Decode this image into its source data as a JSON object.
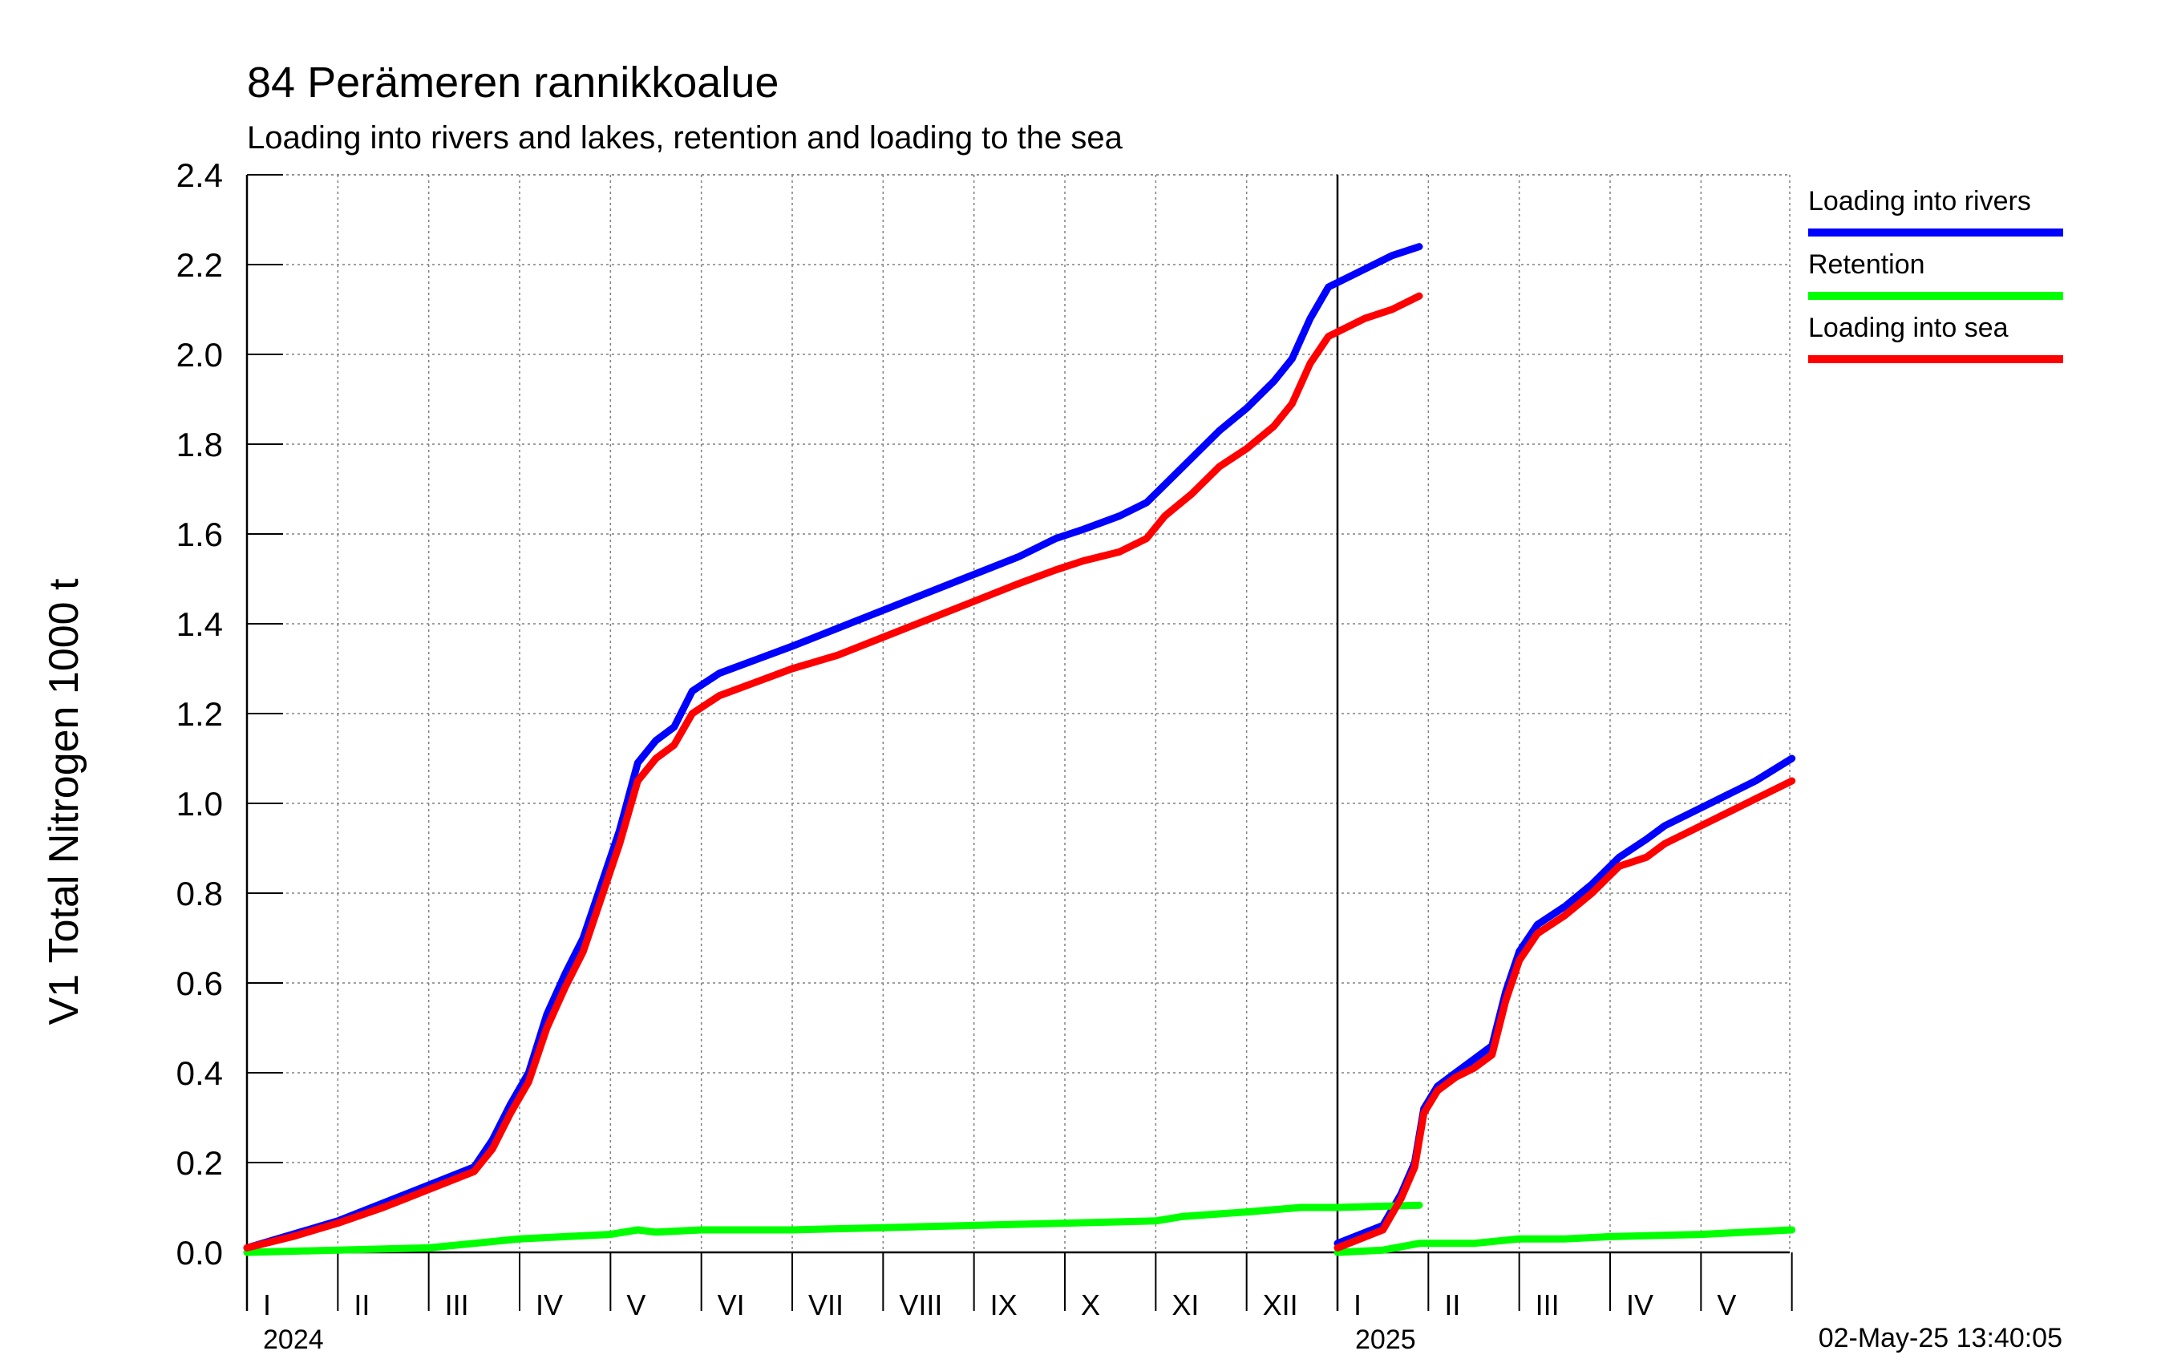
{
  "title": "84 Perämeren rannikkoalue",
  "subtitle": "Loading into rivers and lakes, retention and loading to the sea",
  "timestamp": "02-May-25 13:40:05",
  "chart_data": {
    "type": "line",
    "ylabel": "V1 Total Nitrogen 1000 t",
    "ylim": [
      0.0,
      2.4
    ],
    "yticks": [
      "0.0",
      "0.2",
      "0.4",
      "0.6",
      "0.8",
      "1.0",
      "1.2",
      "1.4",
      "1.6",
      "1.8",
      "2.0",
      "2.2",
      "2.4"
    ],
    "grid": true,
    "legend_position": "right",
    "years": [
      "2024",
      "2025"
    ],
    "month_labels": [
      "I",
      "II",
      "III",
      "IV",
      "V",
      "VI",
      "VII",
      "VIII",
      "IX",
      "X",
      "XI",
      "XII",
      "I",
      "II",
      "III",
      "IV",
      "V"
    ],
    "x_unit": "months since 1 Jan 2024",
    "series": [
      {
        "name": "Loading into rivers",
        "color": "#0000ff",
        "segments": [
          [
            [
              0,
              0.01
            ],
            [
              0.5,
              0.04
            ],
            [
              1.0,
              0.07
            ],
            [
              1.5,
              0.11
            ],
            [
              2.0,
              0.15
            ],
            [
              2.5,
              0.19
            ],
            [
              2.7,
              0.25
            ],
            [
              2.9,
              0.33
            ],
            [
              3.1,
              0.4
            ],
            [
              3.3,
              0.53
            ],
            [
              3.5,
              0.62
            ],
            [
              3.7,
              0.7
            ],
            [
              3.9,
              0.82
            ],
            [
              4.1,
              0.94
            ],
            [
              4.3,
              1.09
            ],
            [
              4.5,
              1.14
            ],
            [
              4.7,
              1.17
            ],
            [
              4.9,
              1.25
            ],
            [
              5.2,
              1.29
            ],
            [
              5.6,
              1.32
            ],
            [
              6.0,
              1.35
            ],
            [
              6.5,
              1.39
            ],
            [
              7.0,
              1.43
            ],
            [
              7.5,
              1.47
            ],
            [
              8.0,
              1.51
            ],
            [
              8.5,
              1.55
            ],
            [
              8.9,
              1.59
            ],
            [
              9.2,
              1.61
            ],
            [
              9.6,
              1.64
            ],
            [
              9.9,
              1.67
            ],
            [
              10.1,
              1.71
            ],
            [
              10.4,
              1.77
            ],
            [
              10.7,
              1.83
            ],
            [
              11.0,
              1.88
            ],
            [
              11.3,
              1.94
            ],
            [
              11.5,
              1.99
            ],
            [
              11.7,
              2.08
            ],
            [
              11.9,
              2.15
            ],
            [
              12.3,
              2.19
            ],
            [
              12.6,
              2.22
            ],
            [
              12.9,
              2.24
            ]
          ],
          [
            [
              12.0,
              0.02
            ],
            [
              12.5,
              0.06
            ],
            [
              12.7,
              0.13
            ],
            [
              12.85,
              0.2
            ],
            [
              12.95,
              0.32
            ],
            [
              13.1,
              0.37
            ],
            [
              13.3,
              0.4
            ],
            [
              13.5,
              0.43
            ],
            [
              13.7,
              0.46
            ],
            [
              13.85,
              0.58
            ],
            [
              14.0,
              0.67
            ],
            [
              14.2,
              0.73
            ],
            [
              14.5,
              0.77
            ],
            [
              14.8,
              0.82
            ],
            [
              15.1,
              0.88
            ],
            [
              15.4,
              0.92
            ],
            [
              15.6,
              0.95
            ],
            [
              16.0,
              0.99
            ],
            [
              16.3,
              1.02
            ],
            [
              16.6,
              1.05
            ],
            [
              17.0,
              1.1
            ]
          ]
        ]
      },
      {
        "name": "Retention",
        "color": "#00ff00",
        "segments": [
          [
            [
              0,
              0.0
            ],
            [
              1.0,
              0.005
            ],
            [
              2.0,
              0.01
            ],
            [
              2.5,
              0.02
            ],
            [
              3.0,
              0.03
            ],
            [
              3.5,
              0.035
            ],
            [
              4.0,
              0.04
            ],
            [
              4.3,
              0.05
            ],
            [
              4.5,
              0.045
            ],
            [
              5.0,
              0.05
            ],
            [
              6.0,
              0.05
            ],
            [
              7.0,
              0.055
            ],
            [
              8.0,
              0.06
            ],
            [
              9.0,
              0.065
            ],
            [
              10.0,
              0.07
            ],
            [
              10.3,
              0.08
            ],
            [
              11.0,
              0.09
            ],
            [
              11.6,
              0.1
            ],
            [
              12.0,
              0.1
            ],
            [
              12.9,
              0.105
            ]
          ],
          [
            [
              12.0,
              0.0
            ],
            [
              12.5,
              0.005
            ],
            [
              12.9,
              0.02
            ],
            [
              13.5,
              0.02
            ],
            [
              14.0,
              0.03
            ],
            [
              14.5,
              0.03
            ],
            [
              15.0,
              0.035
            ],
            [
              16.0,
              0.04
            ],
            [
              17.0,
              0.05
            ]
          ]
        ]
      },
      {
        "name": "Loading into sea",
        "color": "#ff0000",
        "segments": [
          [
            [
              0,
              0.01
            ],
            [
              0.5,
              0.035
            ],
            [
              1.0,
              0.065
            ],
            [
              1.5,
              0.1
            ],
            [
              2.0,
              0.14
            ],
            [
              2.5,
              0.18
            ],
            [
              2.7,
              0.23
            ],
            [
              2.9,
              0.31
            ],
            [
              3.1,
              0.38
            ],
            [
              3.3,
              0.5
            ],
            [
              3.5,
              0.59
            ],
            [
              3.7,
              0.67
            ],
            [
              3.9,
              0.79
            ],
            [
              4.1,
              0.91
            ],
            [
              4.3,
              1.05
            ],
            [
              4.5,
              1.1
            ],
            [
              4.7,
              1.13
            ],
            [
              4.9,
              1.2
            ],
            [
              5.2,
              1.24
            ],
            [
              5.6,
              1.27
            ],
            [
              6.0,
              1.3
            ],
            [
              6.5,
              1.33
            ],
            [
              7.0,
              1.37
            ],
            [
              7.5,
              1.41
            ],
            [
              8.0,
              1.45
            ],
            [
              8.5,
              1.49
            ],
            [
              8.9,
              1.52
            ],
            [
              9.2,
              1.54
            ],
            [
              9.6,
              1.56
            ],
            [
              9.9,
              1.59
            ],
            [
              10.1,
              1.64
            ],
            [
              10.4,
              1.69
            ],
            [
              10.7,
              1.75
            ],
            [
              11.0,
              1.79
            ],
            [
              11.3,
              1.84
            ],
            [
              11.5,
              1.89
            ],
            [
              11.7,
              1.98
            ],
            [
              11.9,
              2.04
            ],
            [
              12.3,
              2.08
            ],
            [
              12.6,
              2.1
            ],
            [
              12.9,
              2.13
            ]
          ],
          [
            [
              12.0,
              0.01
            ],
            [
              12.5,
              0.05
            ],
            [
              12.7,
              0.12
            ],
            [
              12.85,
              0.19
            ],
            [
              12.95,
              0.31
            ],
            [
              13.1,
              0.36
            ],
            [
              13.3,
              0.39
            ],
            [
              13.5,
              0.41
            ],
            [
              13.7,
              0.44
            ],
            [
              13.85,
              0.56
            ],
            [
              14.0,
              0.65
            ],
            [
              14.2,
              0.71
            ],
            [
              14.5,
              0.75
            ],
            [
              14.8,
              0.8
            ],
            [
              15.1,
              0.86
            ],
            [
              15.4,
              0.88
            ],
            [
              15.6,
              0.91
            ],
            [
              16.0,
              0.95
            ],
            [
              16.3,
              0.98
            ],
            [
              16.6,
              1.01
            ],
            [
              17.0,
              1.05
            ]
          ]
        ]
      }
    ]
  }
}
